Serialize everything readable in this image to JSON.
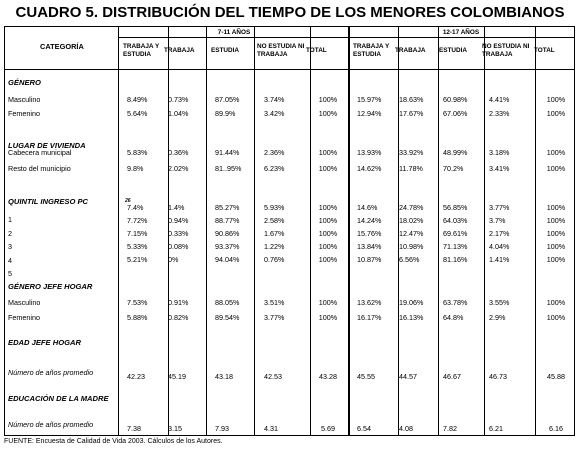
{
  "title": "CUADRO 5. DISTRIBUCIÓN DEL TIEMPO DE LOS MENORES COLOMBIANOS",
  "header": {
    "category": "CATEGORÍA",
    "age_groups": [
      "7-11 AÑOS",
      "12-17 AÑOS"
    ],
    "columns": [
      "TRABAJA Y ESTUDIA",
      "TRABAJA",
      "ESTUDIA",
      "NO ESTUDIA NI TRABAJA",
      "TOTAL"
    ]
  },
  "sections": [
    {
      "group": "GÉNERO",
      "rows": [
        {
          "label": "Masculino",
          "values": [
            "8.49%",
            "0.73%",
            "87.05%",
            "3.74%",
            "100%",
            "15.97%",
            "18.63%",
            "60.98%",
            "4.41%",
            "100%"
          ]
        },
        {
          "label": "Femenino",
          "values": [
            "5.64%",
            "1.04%",
            "89.9%",
            "3.42%",
            "100%",
            "12.94%",
            "17.67%",
            "67.06%",
            "2.33%",
            "100%"
          ]
        }
      ]
    },
    {
      "group": "LUGAR DE VIVIENDA",
      "rows": [
        {
          "label": "Cabecera municipal",
          "values": [
            "5.83%",
            "0.36%",
            "91.44%",
            "2.36%",
            "100%",
            "13.93%",
            "33.92%",
            "48.99%",
            "3.18%",
            "100%"
          ]
        },
        {
          "label": "Resto del municipio",
          "values": [
            "9.8%",
            "2.02%",
            "81..95%",
            "6.23%",
            "100%",
            "14.62%",
            "11.78%",
            "70.2%",
            "3.41%",
            "100%"
          ]
        }
      ]
    },
    {
      "group": "QUINTIL INGRESO PC",
      "group_sup": "26",
      "labels": [
        "1",
        "2",
        "3",
        "4",
        "5"
      ],
      "rows": [
        {
          "values": [
            "7.4%",
            "1.4%",
            "85.27%",
            "5.93%",
            "100%",
            "14.6%",
            "24.78%",
            "56.85%",
            "3.77%",
            "100%"
          ]
        },
        {
          "values": [
            "7.72%",
            "0.94%",
            "88.77%",
            "2.58%",
            "100%",
            "14.24%",
            "18.02%",
            "64.03%",
            "3.7%",
            "100%"
          ]
        },
        {
          "values": [
            "7.15%",
            "0.33%",
            "90.86%",
            "1.67%",
            "100%",
            "15.76%",
            "12.47%",
            "69.61%",
            "2.17%",
            "100%"
          ]
        },
        {
          "values": [
            "5.33%",
            "0.08%",
            "93.37%",
            "1.22%",
            "100%",
            "13.84%",
            "10.98%",
            "71.13%",
            "4.04%",
            "100%"
          ]
        },
        {
          "values": [
            "5.21%",
            "0%",
            "94.04%",
            "0.76%",
            "100%",
            "10.87%",
            "6.56%",
            "81.16%",
            "1.41%",
            "100%"
          ]
        }
      ]
    },
    {
      "group": "GÉNERO JEFE HOGAR",
      "rows": [
        {
          "label": "Masculino",
          "values": [
            "7.53%",
            "0.91%",
            "88.05%",
            "3.51%",
            "100%",
            "13.62%",
            "19.06%",
            "63.78%",
            "3.55%",
            "100%"
          ]
        },
        {
          "label": "Femenino",
          "values": [
            "5.88%",
            "0.82%",
            "89.54%",
            "3.77%",
            "100%",
            "16.17%",
            "16.13%",
            "64.8%",
            "2.9%",
            "100%"
          ]
        }
      ]
    },
    {
      "group": "EDAD JEFE HOGAR",
      "rows": [
        {
          "label": "Número de años promedio",
          "values": [
            "42.23",
            "45.19",
            "43.18",
            "42.53",
            "43.28",
            "45.55",
            "44.57",
            "46.67",
            "46.73",
            "45.88"
          ]
        }
      ]
    },
    {
      "group": "EDUCACIÓN DE LA MADRE",
      "rows": [
        {
          "label": "Número de años promedio",
          "values": [
            "7.38",
            "3.15",
            "7.93",
            "4.31",
            "5.69",
            "6.54",
            "4.08",
            "7.82",
            "6.21",
            "6.16"
          ]
        }
      ]
    }
  ],
  "source": "FUENTE: Encuesta de Calidad de Vida 2003. Cálculos de los Autores."
}
